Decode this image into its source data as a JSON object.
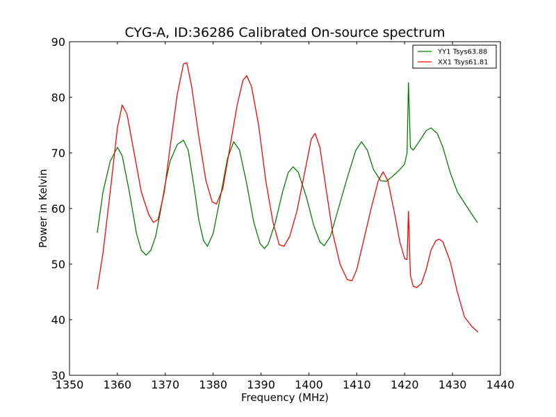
{
  "chart_data": {
    "type": "line",
    "title": "CYG-A, ID:36286 Calibrated On-source spectrum",
    "xlabel": "Frequency (MHz)",
    "ylabel": "Power in Kelvin",
    "xlim": [
      1350,
      1440
    ],
    "ylim": [
      30,
      90
    ],
    "xticks": [
      1350,
      1360,
      1370,
      1380,
      1390,
      1400,
      1410,
      1420,
      1430,
      1440
    ],
    "yticks": [
      30,
      40,
      50,
      60,
      70,
      80,
      90
    ],
    "grid": false,
    "legend_position": "top-right",
    "series": [
      {
        "name": "YY1 Tsys63.88",
        "color": "#008000",
        "points": [
          [
            1355.8,
            55.7
          ],
          [
            1357,
            63
          ],
          [
            1358.5,
            68.5
          ],
          [
            1360,
            71
          ],
          [
            1361,
            69.5
          ],
          [
            1362.5,
            63
          ],
          [
            1364,
            55.5
          ],
          [
            1365,
            52.5
          ],
          [
            1366,
            51.6
          ],
          [
            1367,
            52.5
          ],
          [
            1368,
            55
          ],
          [
            1369,
            59.5
          ],
          [
            1370,
            64.5
          ],
          [
            1371,
            68.5
          ],
          [
            1372.5,
            71.5
          ],
          [
            1373.8,
            72.3
          ],
          [
            1374.8,
            70.5
          ],
          [
            1376,
            64
          ],
          [
            1377,
            58
          ],
          [
            1378,
            54.2
          ],
          [
            1378.8,
            53.2
          ],
          [
            1380,
            55.5
          ],
          [
            1381.5,
            62
          ],
          [
            1383,
            69
          ],
          [
            1384.3,
            72
          ],
          [
            1385.5,
            70.5
          ],
          [
            1387,
            64.5
          ],
          [
            1388.5,
            57.5
          ],
          [
            1389.8,
            53.7
          ],
          [
            1390.7,
            52.8
          ],
          [
            1391.5,
            53.6
          ],
          [
            1393,
            57.5
          ],
          [
            1394.5,
            63
          ],
          [
            1395.7,
            66.5
          ],
          [
            1396.7,
            67.5
          ],
          [
            1397.8,
            66.5
          ],
          [
            1399.5,
            62
          ],
          [
            1401,
            57
          ],
          [
            1402.3,
            54
          ],
          [
            1403.2,
            53.3
          ],
          [
            1404.5,
            55
          ],
          [
            1406,
            59.5
          ],
          [
            1408,
            65.5
          ],
          [
            1409.8,
            70.5
          ],
          [
            1411,
            72
          ],
          [
            1412.2,
            70.5
          ],
          [
            1413.5,
            67
          ],
          [
            1415,
            65
          ],
          [
            1416.2,
            64.9
          ],
          [
            1417.5,
            65.8
          ],
          [
            1419,
            67
          ],
          [
            1420,
            68
          ],
          [
            1420.5,
            70
          ],
          [
            1420.8,
            82.6
          ],
          [
            1421.2,
            71
          ],
          [
            1421.8,
            70.5
          ],
          [
            1423,
            72
          ],
          [
            1424.5,
            74
          ],
          [
            1425.5,
            74.5
          ],
          [
            1426.8,
            73.5
          ],
          [
            1428,
            71
          ],
          [
            1429.5,
            66.5
          ],
          [
            1431,
            63
          ],
          [
            1432.5,
            61
          ],
          [
            1434,
            59
          ],
          [
            1435.2,
            57.5
          ]
        ]
      },
      {
        "name": "XX1 Tsys61.81",
        "color": "#ff0000",
        "points": [
          [
            1355.8,
            45.5
          ],
          [
            1357,
            52
          ],
          [
            1358.5,
            63
          ],
          [
            1360,
            74.5
          ],
          [
            1361,
            78.6
          ],
          [
            1362,
            77
          ],
          [
            1363.5,
            70
          ],
          [
            1365,
            63
          ],
          [
            1366.5,
            59
          ],
          [
            1367.5,
            57.5
          ],
          [
            1368.5,
            58
          ],
          [
            1369.8,
            63
          ],
          [
            1371,
            71
          ],
          [
            1372.5,
            80.5
          ],
          [
            1373.8,
            86
          ],
          [
            1374.5,
            86.2
          ],
          [
            1375.5,
            82
          ],
          [
            1377,
            73
          ],
          [
            1378.5,
            65
          ],
          [
            1379.8,
            61.2
          ],
          [
            1380.7,
            60.8
          ],
          [
            1382,
            63.5
          ],
          [
            1383.5,
            71
          ],
          [
            1385,
            78.5
          ],
          [
            1386.2,
            83
          ],
          [
            1387,
            83.9
          ],
          [
            1388,
            82
          ],
          [
            1389.5,
            75
          ],
          [
            1391,
            65
          ],
          [
            1392.5,
            57.5
          ],
          [
            1393.8,
            53.5
          ],
          [
            1394.8,
            53.2
          ],
          [
            1396,
            55
          ],
          [
            1397.5,
            59.5
          ],
          [
            1399,
            66
          ],
          [
            1400.5,
            72.5
          ],
          [
            1401.3,
            73.5
          ],
          [
            1402.3,
            71
          ],
          [
            1403.5,
            64
          ],
          [
            1405,
            55.5
          ],
          [
            1406.5,
            50
          ],
          [
            1408,
            47.2
          ],
          [
            1409,
            47
          ],
          [
            1410,
            49
          ],
          [
            1411.5,
            54.5
          ],
          [
            1413,
            60
          ],
          [
            1414.5,
            65
          ],
          [
            1415.5,
            66.6
          ],
          [
            1416.5,
            65
          ],
          [
            1417.8,
            59.5
          ],
          [
            1419,
            54
          ],
          [
            1420,
            51
          ],
          [
            1420.5,
            50.8
          ],
          [
            1420.8,
            59.5
          ],
          [
            1421.2,
            48
          ],
          [
            1421.8,
            46
          ],
          [
            1422.5,
            45.8
          ],
          [
            1423.5,
            46.5
          ],
          [
            1424.5,
            49
          ],
          [
            1425.5,
            52.5
          ],
          [
            1426.5,
            54.2
          ],
          [
            1427.2,
            54.5
          ],
          [
            1428,
            54
          ],
          [
            1429.5,
            50.5
          ],
          [
            1431,
            45
          ],
          [
            1432.5,
            40.5
          ],
          [
            1434,
            38.8
          ],
          [
            1435.3,
            37.8
          ]
        ]
      }
    ]
  }
}
